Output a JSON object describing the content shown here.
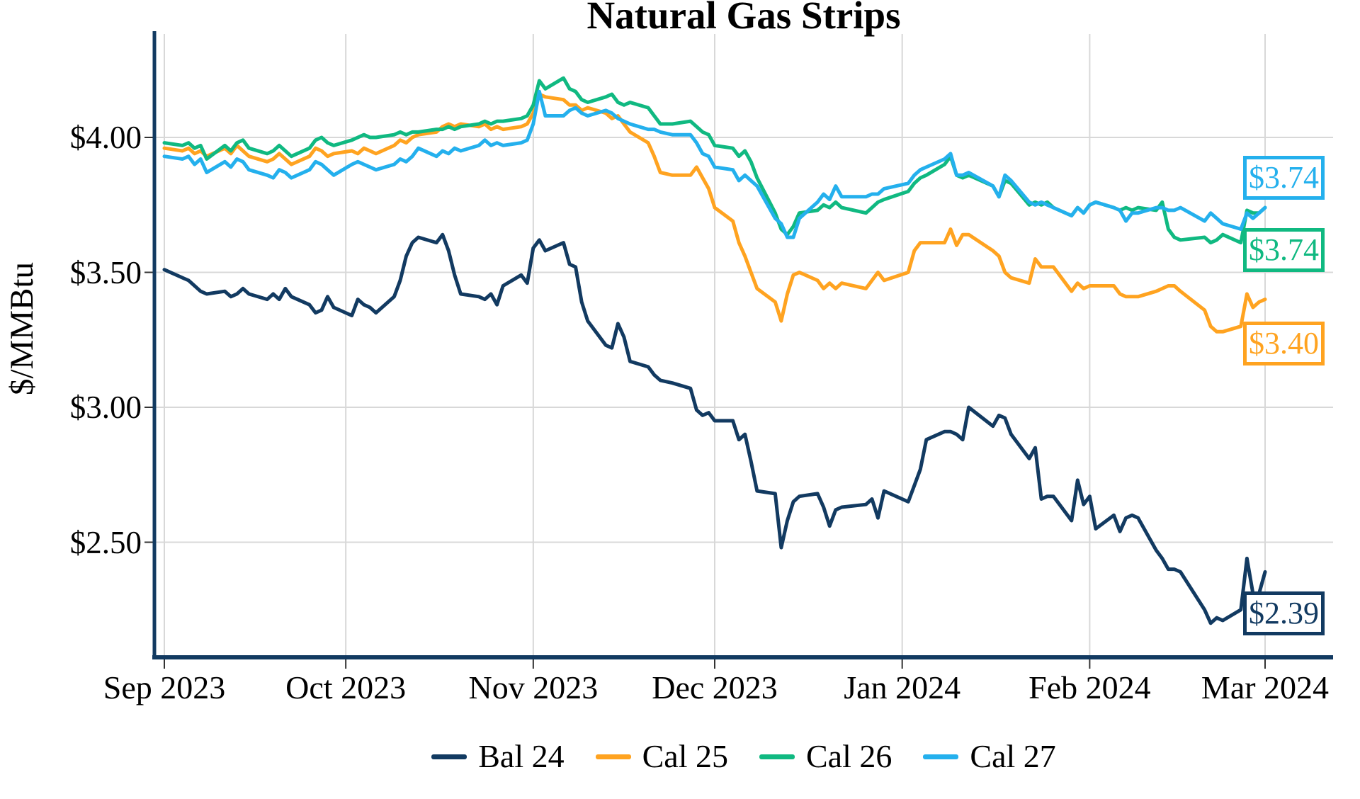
{
  "title": "Natural Gas Strips",
  "y_axis": {
    "label": "$/MMBtu",
    "tick_labels": [
      "$4.00",
      "$3.50",
      "$3.00",
      "$2.50"
    ],
    "tick_values": [
      4.0,
      3.5,
      3.0,
      2.5
    ]
  },
  "x_axis": {
    "tick_labels": [
      "Sep 2023",
      "Oct 2023",
      "Nov 2023",
      "Dec 2023",
      "Jan 2024",
      "Feb 2024",
      "Mar 2024"
    ],
    "tick_days": [
      0,
      30,
      61,
      91,
      122,
      153,
      182
    ]
  },
  "legend": [
    {
      "label": "Bal 24",
      "color": "#123a61"
    },
    {
      "label": "Cal 25",
      "color": "#ffa320"
    },
    {
      "label": "Cal 26",
      "color": "#10b981"
    },
    {
      "label": "Cal 27",
      "color": "#24b0ed"
    }
  ],
  "end_labels": [
    {
      "series": "Bal 24",
      "text": "$2.39",
      "color": "#123a61"
    },
    {
      "series": "Cal 25",
      "text": "$3.40",
      "color": "#ffa320"
    },
    {
      "series": "Cal 26",
      "text": "$3.74",
      "color": "#10b981"
    },
    {
      "series": "Cal 27",
      "text": "$3.74",
      "color": "#24b0ed"
    }
  ],
  "chart_data": {
    "type": "line",
    "title": "Natural Gas Strips",
    "ylabel": "$/MMBtu",
    "xlabel": "",
    "x_unit": "days since Sep 1 2023 (weekdays only)",
    "x_range_labels": [
      "Sep 2023",
      "Mar 2024"
    ],
    "ylim": [
      2.07,
      4.39
    ],
    "grid": true,
    "legend_position": "bottom center",
    "x": [
      0,
      3,
      4,
      5,
      6,
      7,
      10,
      11,
      12,
      13,
      14,
      17,
      18,
      19,
      20,
      21,
      24,
      25,
      26,
      27,
      28,
      31,
      32,
      33,
      34,
      35,
      38,
      39,
      40,
      41,
      42,
      45,
      46,
      47,
      48,
      49,
      52,
      53,
      54,
      55,
      56,
      59,
      60,
      61,
      62,
      63,
      66,
      67,
      68,
      69,
      70,
      73,
      74,
      75,
      76,
      77,
      80,
      81,
      82,
      84,
      87,
      88,
      89,
      90,
      91,
      94,
      95,
      96,
      97,
      98,
      101,
      102,
      103,
      104,
      105,
      108,
      109,
      110,
      111,
      112,
      116,
      117,
      118,
      119,
      123,
      124,
      125,
      126,
      129,
      130,
      131,
      132,
      133,
      137,
      138,
      139,
      140,
      143,
      144,
      145,
      146,
      147,
      150,
      151,
      152,
      153,
      154,
      157,
      158,
      159,
      160,
      161,
      164,
      165,
      166,
      167,
      168,
      172,
      173,
      174,
      175,
      178,
      179,
      180,
      181,
      182
    ],
    "series": [
      {
        "name": "Bal 24",
        "color": "#123a61",
        "final_value": 2.39,
        "values": [
          3.51,
          3.48,
          3.47,
          3.45,
          3.43,
          3.42,
          3.43,
          3.41,
          3.42,
          3.44,
          3.42,
          3.4,
          3.42,
          3.4,
          3.44,
          3.41,
          3.38,
          3.35,
          3.36,
          3.41,
          3.37,
          3.34,
          3.4,
          3.38,
          3.37,
          3.35,
          3.41,
          3.47,
          3.56,
          3.61,
          3.63,
          3.61,
          3.64,
          3.58,
          3.49,
          3.42,
          3.41,
          3.4,
          3.42,
          3.38,
          3.45,
          3.49,
          3.46,
          3.59,
          3.62,
          3.58,
          3.61,
          3.53,
          3.52,
          3.39,
          3.32,
          3.23,
          3.22,
          3.31,
          3.26,
          3.17,
          3.15,
          3.12,
          3.1,
          3.09,
          3.07,
          2.99,
          2.97,
          2.98,
          2.95,
          2.95,
          2.88,
          2.9,
          2.8,
          2.69,
          2.68,
          2.48,
          2.58,
          2.65,
          2.67,
          2.68,
          2.63,
          2.56,
          2.62,
          2.63,
          2.64,
          2.66,
          2.59,
          2.69,
          2.65,
          2.71,
          2.77,
          2.88,
          2.91,
          2.91,
          2.9,
          2.88,
          3.0,
          2.93,
          2.97,
          2.96,
          2.9,
          2.81,
          2.85,
          2.66,
          2.67,
          2.67,
          2.58,
          2.73,
          2.64,
          2.67,
          2.55,
          2.6,
          2.54,
          2.59,
          2.6,
          2.59,
          2.47,
          2.44,
          2.4,
          2.4,
          2.39,
          2.25,
          2.2,
          2.22,
          2.21,
          2.25,
          2.44,
          2.31,
          2.31,
          2.39
        ]
      },
      {
        "name": "Cal 25",
        "color": "#ffa320",
        "final_value": 3.4,
        "values": [
          3.96,
          3.95,
          3.96,
          3.94,
          3.95,
          3.93,
          3.96,
          3.94,
          3.97,
          3.95,
          3.93,
          3.91,
          3.92,
          3.94,
          3.92,
          3.9,
          3.93,
          3.96,
          3.95,
          3.93,
          3.94,
          3.95,
          3.94,
          3.96,
          3.95,
          3.94,
          3.97,
          3.99,
          3.98,
          4.0,
          4.01,
          4.02,
          4.04,
          4.05,
          4.04,
          4.05,
          4.04,
          4.05,
          4.03,
          4.04,
          4.03,
          4.04,
          4.05,
          4.09,
          4.16,
          4.15,
          4.14,
          4.12,
          4.12,
          4.1,
          4.11,
          4.09,
          4.07,
          4.08,
          4.05,
          4.02,
          3.98,
          3.93,
          3.87,
          3.86,
          3.86,
          3.89,
          3.85,
          3.81,
          3.74,
          3.69,
          3.61,
          3.56,
          3.5,
          3.44,
          3.39,
          3.32,
          3.42,
          3.49,
          3.5,
          3.47,
          3.44,
          3.46,
          3.44,
          3.46,
          3.44,
          3.47,
          3.5,
          3.47,
          3.5,
          3.58,
          3.61,
          3.61,
          3.61,
          3.66,
          3.6,
          3.64,
          3.64,
          3.58,
          3.56,
          3.5,
          3.48,
          3.46,
          3.55,
          3.52,
          3.52,
          3.52,
          3.43,
          3.46,
          3.44,
          3.45,
          3.45,
          3.45,
          3.42,
          3.41,
          3.41,
          3.41,
          3.43,
          3.44,
          3.45,
          3.45,
          3.43,
          3.36,
          3.3,
          3.28,
          3.28,
          3.3,
          3.42,
          3.37,
          3.39,
          3.4
        ]
      },
      {
        "name": "Cal 26",
        "color": "#10b981",
        "final_value": 3.74,
        "values": [
          3.98,
          3.97,
          3.98,
          3.96,
          3.97,
          3.92,
          3.97,
          3.95,
          3.98,
          3.99,
          3.96,
          3.94,
          3.95,
          3.97,
          3.95,
          3.93,
          3.96,
          3.99,
          4.0,
          3.98,
          3.97,
          3.99,
          4.0,
          4.01,
          4.0,
          4.0,
          4.01,
          4.02,
          4.01,
          4.02,
          4.02,
          4.03,
          4.03,
          4.04,
          4.03,
          4.04,
          4.05,
          4.06,
          4.05,
          4.06,
          4.06,
          4.07,
          4.08,
          4.12,
          4.21,
          4.18,
          4.22,
          4.18,
          4.17,
          4.14,
          4.13,
          4.15,
          4.16,
          4.13,
          4.12,
          4.13,
          4.11,
          4.08,
          4.05,
          4.05,
          4.06,
          4.04,
          4.02,
          4.01,
          3.97,
          3.96,
          3.93,
          3.95,
          3.91,
          3.85,
          3.72,
          3.66,
          3.64,
          3.67,
          3.72,
          3.73,
          3.75,
          3.74,
          3.76,
          3.74,
          3.72,
          3.74,
          3.76,
          3.77,
          3.8,
          3.83,
          3.85,
          3.86,
          3.9,
          3.93,
          3.86,
          3.85,
          3.86,
          3.82,
          3.78,
          3.84,
          3.83,
          3.75,
          3.76,
          3.75,
          3.76,
          3.74,
          3.71,
          3.74,
          3.72,
          3.75,
          3.76,
          3.74,
          3.73,
          3.74,
          3.73,
          3.74,
          3.73,
          3.76,
          3.66,
          3.63,
          3.62,
          3.63,
          3.61,
          3.62,
          3.64,
          3.61,
          3.73,
          3.72,
          3.72,
          3.74
        ]
      },
      {
        "name": "Cal 27",
        "color": "#24b0ed",
        "final_value": 3.74,
        "values": [
          3.93,
          3.92,
          3.93,
          3.9,
          3.92,
          3.87,
          3.91,
          3.89,
          3.92,
          3.91,
          3.88,
          3.86,
          3.85,
          3.88,
          3.87,
          3.85,
          3.88,
          3.91,
          3.9,
          3.88,
          3.86,
          3.9,
          3.91,
          3.9,
          3.89,
          3.88,
          3.9,
          3.92,
          3.91,
          3.93,
          3.96,
          3.93,
          3.95,
          3.94,
          3.96,
          3.95,
          3.97,
          3.99,
          3.97,
          3.98,
          3.97,
          3.98,
          3.99,
          4.05,
          4.17,
          4.08,
          4.08,
          4.1,
          4.11,
          4.09,
          4.08,
          4.1,
          4.09,
          4.07,
          4.06,
          4.05,
          4.03,
          4.03,
          4.02,
          4.01,
          4.01,
          3.98,
          3.94,
          3.93,
          3.89,
          3.88,
          3.84,
          3.86,
          3.84,
          3.82,
          3.7,
          3.68,
          3.63,
          3.63,
          3.7,
          3.76,
          3.79,
          3.77,
          3.82,
          3.78,
          3.78,
          3.79,
          3.79,
          3.81,
          3.83,
          3.86,
          3.88,
          3.89,
          3.92,
          3.94,
          3.86,
          3.86,
          3.87,
          3.82,
          3.78,
          3.86,
          3.84,
          3.76,
          3.75,
          3.76,
          3.75,
          3.74,
          3.71,
          3.74,
          3.72,
          3.75,
          3.76,
          3.74,
          3.73,
          3.69,
          3.72,
          3.72,
          3.74,
          3.74,
          3.73,
          3.73,
          3.74,
          3.69,
          3.72,
          3.7,
          3.68,
          3.66,
          3.72,
          3.7,
          3.72,
          3.74
        ]
      }
    ]
  }
}
